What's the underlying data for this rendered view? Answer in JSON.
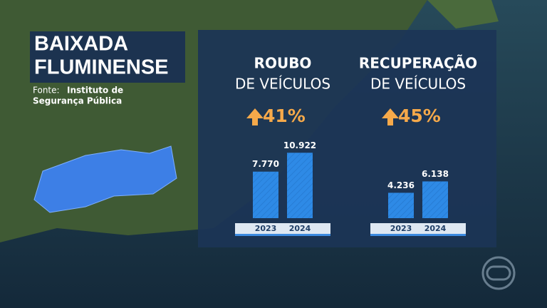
{
  "header": {
    "title": [
      "BAIXADA",
      "FLUMINENSE"
    ],
    "source_label": "Fonte:",
    "source": [
      "Instituto de",
      "Segurança Pública"
    ]
  },
  "chart_data": [
    {
      "type": "bar",
      "title": "ROUBO",
      "subtitle": "DE VEÍCULOS",
      "annotation": "41%",
      "categories": [
        "2023",
        "2024"
      ],
      "values": [
        7770,
        10922
      ],
      "value_labels": [
        "7.770",
        "10.922"
      ],
      "color": "#2e8ae6"
    },
    {
      "type": "bar",
      "title": "RECUPERAÇÃO",
      "subtitle": "DE VEÍCULOS",
      "annotation": "45%",
      "categories": [
        "2023",
        "2024"
      ],
      "values": [
        4236,
        6138
      ],
      "value_labels": [
        "4.236",
        "6.138"
      ],
      "color": "#2e8ae6"
    }
  ]
}
